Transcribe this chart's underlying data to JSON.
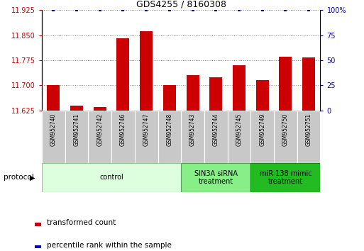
{
  "title": "GDS4255 / 8160308",
  "samples": [
    "GSM952740",
    "GSM952741",
    "GSM952742",
    "GSM952746",
    "GSM952747",
    "GSM952748",
    "GSM952743",
    "GSM952744",
    "GSM952745",
    "GSM952749",
    "GSM952750",
    "GSM952751"
  ],
  "bar_values": [
    11.7,
    11.64,
    11.635,
    11.84,
    11.862,
    11.7,
    11.73,
    11.725,
    11.76,
    11.715,
    11.785,
    11.783
  ],
  "bar_color": "#cc0000",
  "percentile_color": "#0000bb",
  "ymin": 11.625,
  "ymax": 11.925,
  "yticks": [
    11.625,
    11.7,
    11.775,
    11.85,
    11.925
  ],
  "y2ticks": [
    0,
    25,
    50,
    75,
    100
  ],
  "y2labels": [
    "0",
    "25",
    "50",
    "75",
    "100%"
  ],
  "groups": [
    {
      "label": "control",
      "start": 0,
      "end": 6,
      "color": "#ddffdd",
      "border": "#88cc88"
    },
    {
      "label": "SIN3A siRNA\ntreatment",
      "start": 6,
      "end": 9,
      "color": "#88ee88",
      "border": "#44aa44"
    },
    {
      "label": "miR-138 mimic\ntreatment",
      "start": 9,
      "end": 12,
      "color": "#22bb22",
      "border": "#118811"
    }
  ],
  "protocol_label": "protocol",
  "legend_items": [
    {
      "color": "#cc0000",
      "label": "transformed count"
    },
    {
      "color": "#0000bb",
      "label": "percentile rank within the sample"
    }
  ],
  "bar_width": 0.55,
  "ylabel_color": "#cc0000",
  "y2label_color": "#0000bb",
  "title_fontsize": 9,
  "tick_fontsize": 7,
  "sample_fontsize": 5.5,
  "group_fontsize": 7,
  "legend_fontsize": 7.5
}
